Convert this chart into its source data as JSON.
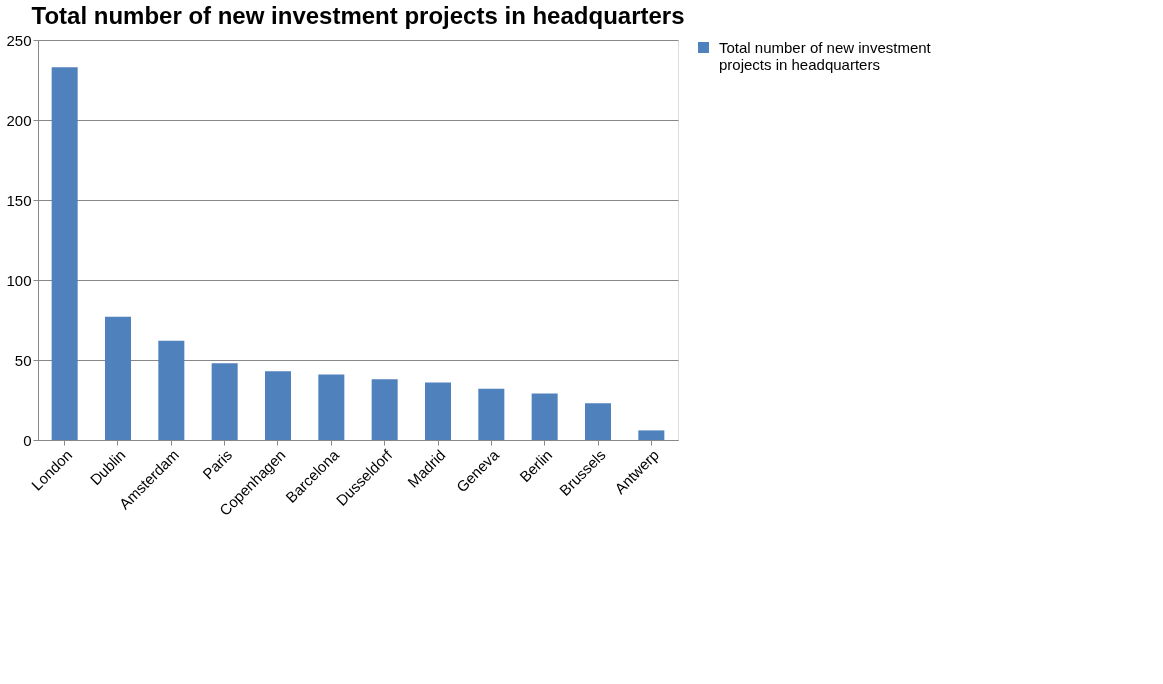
{
  "chart_data": {
    "type": "bar",
    "title": "Total number of new investment projects in headquarters",
    "categories": [
      "London",
      "Dublin",
      "Amsterdam",
      "Paris",
      "Copenhagen",
      "Barcelona",
      "Dusseldorf",
      "Madrid",
      "Geneva",
      "Berlin",
      "Brussels",
      "Antwerp"
    ],
    "series": [
      {
        "name": "Total number of new investment projects in headquarters",
        "color": "#4f81bd",
        "values": [
          233,
          77,
          62,
          48,
          43,
          41,
          38,
          36,
          32,
          29,
          23,
          6
        ]
      }
    ],
    "ylim": [
      0,
      250
    ],
    "yticks": [
      0,
      50,
      100,
      150,
      200,
      250
    ],
    "grid": "y",
    "legend": "right"
  }
}
